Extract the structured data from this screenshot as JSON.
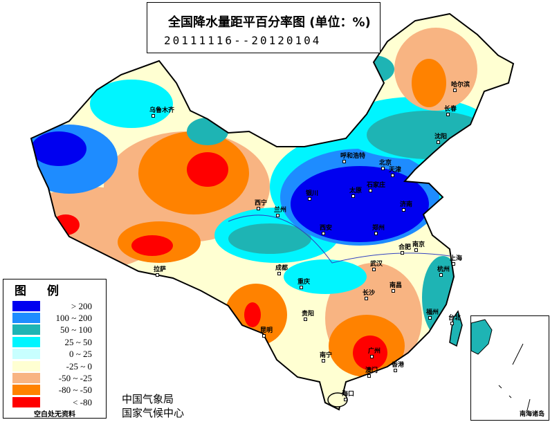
{
  "title": "全国降水量距平百分率图 (单位：%)",
  "date_range": "20111116--20120104",
  "legend": {
    "title": "图例",
    "items": [
      {
        "label": "> 200",
        "color": "#0000f0"
      },
      {
        "label": "100 ~ 200",
        "color": "#1e8cff"
      },
      {
        "label": "50 ~ 100",
        "color": "#1eb4b4"
      },
      {
        "label": "25 ~ 50",
        "color": "#00f5ff"
      },
      {
        "label": "0 ~ 25",
        "color": "#c8ffff"
      },
      {
        "label": "-25 ~ 0",
        "color": "#ffffd2"
      },
      {
        "label": "-50 ~ -25",
        "color": "#f8b482"
      },
      {
        "label": "-80 ~ -50",
        "color": "#ff8200"
      },
      {
        "label": "< -80",
        "color": "#ff0000"
      }
    ],
    "note": "空白处无资料"
  },
  "org": [
    "中国气象局",
    "国家气候中心"
  ],
  "inset_label": "南海诸岛",
  "cities": [
    "乌鲁木齐",
    "呼和浩特",
    "北京",
    "天津",
    "石家庄",
    "太原",
    "银川",
    "西宁",
    "兰州",
    "济南",
    "郑州",
    "西安",
    "合肥",
    "南京",
    "上海",
    "杭州",
    "武汉",
    "成都",
    "重庆",
    "长沙",
    "南昌",
    "贵阳",
    "福州",
    "台北",
    "昆明",
    "南宁",
    "广州",
    "香港",
    "澳门",
    "海口",
    "拉萨",
    "哈尔滨",
    "长春",
    "沈阳"
  ]
}
